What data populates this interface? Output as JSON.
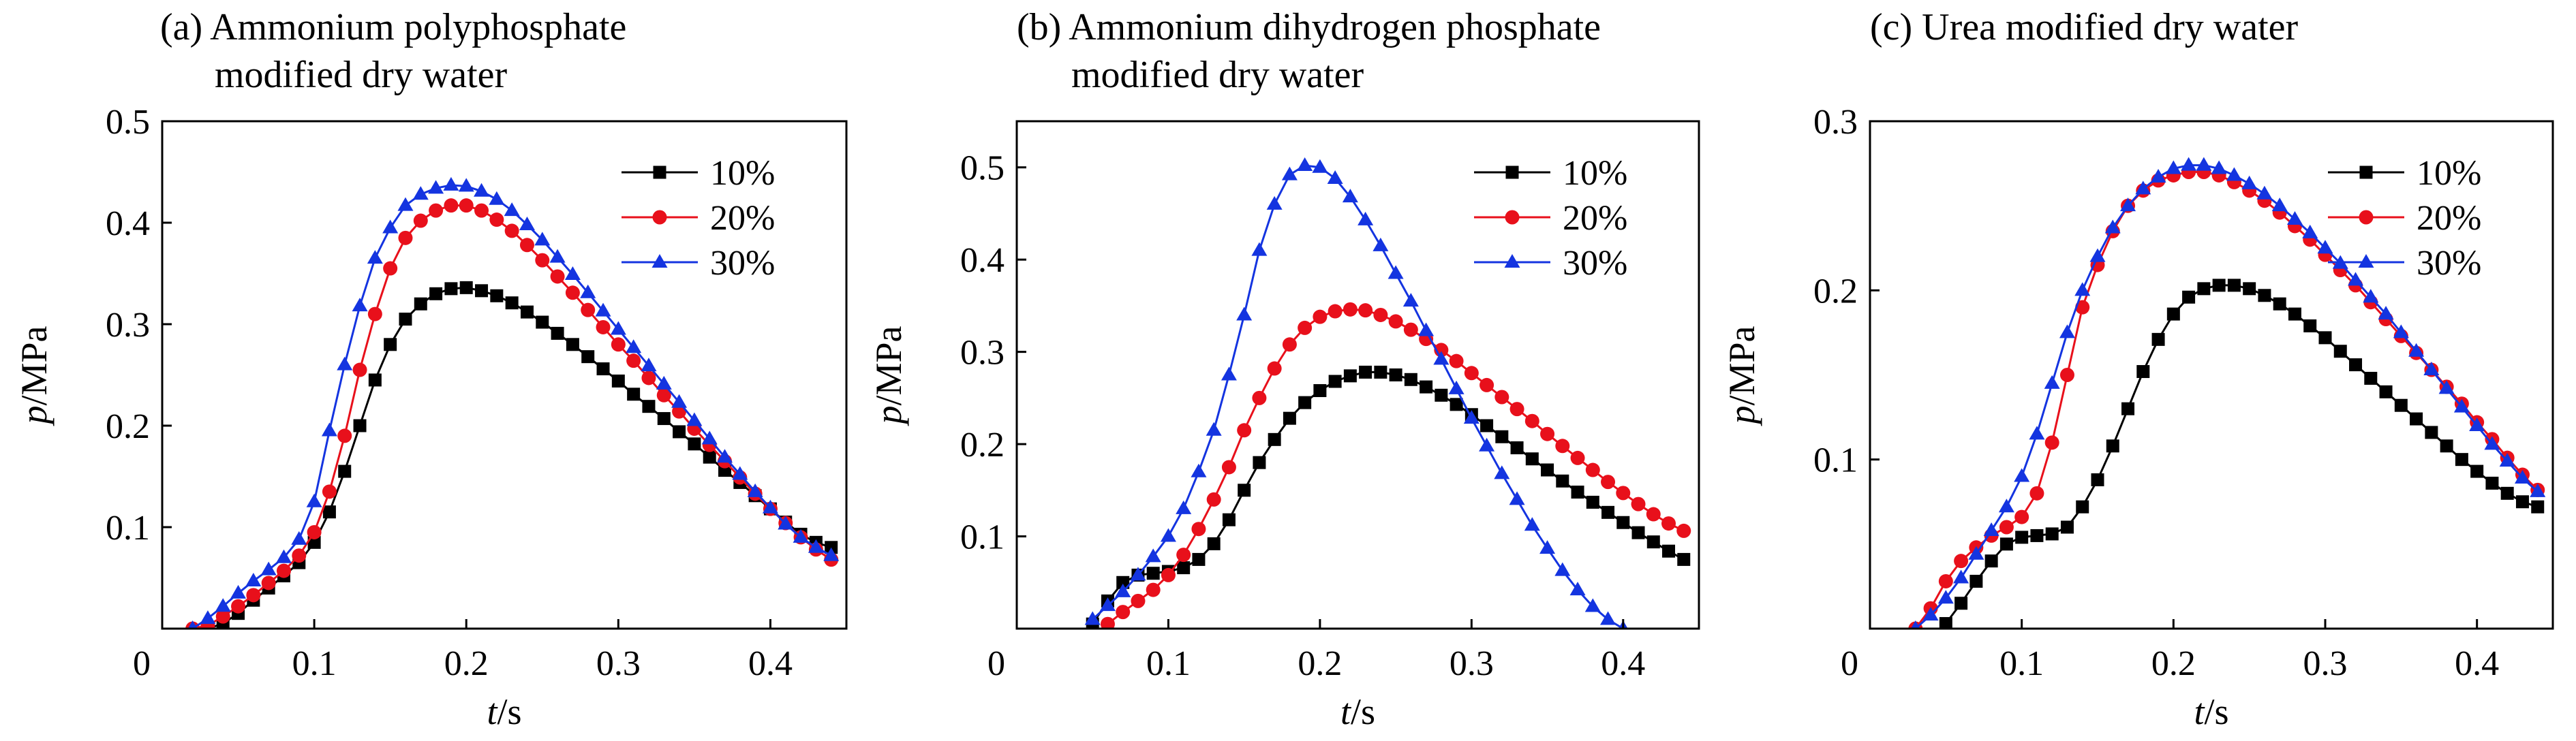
{
  "chart_data": [
    {
      "type": "line",
      "title_lines": [
        "(a) Ammonium polyphosphate",
        "modified dry water"
      ],
      "xlabel": {
        "var": "t",
        "unit": "/s"
      },
      "ylabel": {
        "var": "p",
        "unit": "/MPa"
      },
      "xlim": [
        0,
        0.45
      ],
      "ylim": [
        0,
        0.5
      ],
      "x_ticks": [
        0.1,
        0.2,
        0.3,
        0.4
      ],
      "x_tick_labels": [
        "0.1",
        "0.2",
        "0.3",
        "0.4"
      ],
      "y_ticks": [
        0.1,
        0.2,
        0.3,
        0.4,
        0.5
      ],
      "y_tick_labels": [
        "0.1",
        "0.2",
        "0.3",
        "0.4",
        "0.5"
      ],
      "origin_label": "0",
      "legend_position": "top-right",
      "series": [
        {
          "name": "10%",
          "color": "#000000",
          "marker": "square",
          "x": [
            0.03,
            0.04,
            0.05,
            0.06,
            0.07,
            0.08,
            0.09,
            0.1,
            0.11,
            0.12,
            0.13,
            0.14,
            0.15,
            0.16,
            0.17,
            0.18,
            0.19,
            0.2,
            0.21,
            0.22,
            0.23,
            0.24,
            0.25,
            0.26,
            0.27,
            0.28,
            0.29,
            0.3,
            0.31,
            0.32,
            0.33,
            0.34,
            0.35,
            0.36,
            0.37,
            0.38,
            0.39,
            0.4,
            0.41,
            0.42,
            0.43,
            0.44
          ],
          "y": [
            0.0,
            0.005,
            0.015,
            0.028,
            0.04,
            0.052,
            0.065,
            0.085,
            0.115,
            0.155,
            0.2,
            0.245,
            0.28,
            0.305,
            0.32,
            0.33,
            0.335,
            0.336,
            0.333,
            0.328,
            0.321,
            0.312,
            0.302,
            0.291,
            0.28,
            0.268,
            0.256,
            0.244,
            0.231,
            0.219,
            0.207,
            0.194,
            0.182,
            0.169,
            0.156,
            0.144,
            0.131,
            0.118,
            0.105,
            0.093,
            0.085,
            0.08
          ]
        },
        {
          "name": "20%",
          "color": "#e8101b",
          "marker": "circle",
          "x": [
            0.02,
            0.03,
            0.04,
            0.05,
            0.06,
            0.07,
            0.08,
            0.09,
            0.1,
            0.11,
            0.12,
            0.13,
            0.14,
            0.15,
            0.16,
            0.17,
            0.18,
            0.19,
            0.2,
            0.21,
            0.22,
            0.23,
            0.24,
            0.25,
            0.26,
            0.27,
            0.28,
            0.29,
            0.3,
            0.31,
            0.32,
            0.33,
            0.34,
            0.35,
            0.36,
            0.37,
            0.38,
            0.39,
            0.4,
            0.41,
            0.42,
            0.43,
            0.44
          ],
          "y": [
            0.0,
            0.003,
            0.012,
            0.022,
            0.033,
            0.045,
            0.057,
            0.072,
            0.095,
            0.135,
            0.19,
            0.255,
            0.31,
            0.355,
            0.385,
            0.402,
            0.412,
            0.417,
            0.417,
            0.412,
            0.403,
            0.392,
            0.378,
            0.363,
            0.347,
            0.331,
            0.314,
            0.297,
            0.28,
            0.264,
            0.247,
            0.23,
            0.214,
            0.197,
            0.181,
            0.165,
            0.149,
            0.133,
            0.118,
            0.104,
            0.09,
            0.078,
            0.068
          ]
        },
        {
          "name": "30%",
          "color": "#1434e0",
          "marker": "triangle",
          "x": [
            0.02,
            0.03,
            0.04,
            0.05,
            0.06,
            0.07,
            0.08,
            0.09,
            0.1,
            0.11,
            0.12,
            0.13,
            0.14,
            0.15,
            0.16,
            0.17,
            0.18,
            0.19,
            0.2,
            0.21,
            0.22,
            0.23,
            0.24,
            0.25,
            0.26,
            0.27,
            0.28,
            0.29,
            0.3,
            0.31,
            0.32,
            0.33,
            0.34,
            0.35,
            0.36,
            0.37,
            0.38,
            0.39,
            0.4,
            0.41,
            0.42,
            0.43,
            0.44
          ],
          "y": [
            0.0,
            0.01,
            0.022,
            0.035,
            0.047,
            0.058,
            0.07,
            0.088,
            0.125,
            0.195,
            0.26,
            0.318,
            0.365,
            0.395,
            0.417,
            0.428,
            0.434,
            0.437,
            0.436,
            0.431,
            0.423,
            0.412,
            0.398,
            0.383,
            0.366,
            0.349,
            0.331,
            0.313,
            0.295,
            0.277,
            0.259,
            0.241,
            0.223,
            0.205,
            0.187,
            0.169,
            0.152,
            0.135,
            0.119,
            0.103,
            0.09,
            0.08,
            0.072
          ]
        }
      ]
    },
    {
      "type": "line",
      "title_lines": [
        "(b) Ammonium dihydrogen phosphate",
        "modified dry water"
      ],
      "xlabel": {
        "var": "t",
        "unit": "/s"
      },
      "ylabel": {
        "var": "p",
        "unit": "/MPa"
      },
      "xlim": [
        0,
        0.45
      ],
      "ylim": [
        0,
        0.55
      ],
      "x_ticks": [
        0.1,
        0.2,
        0.3,
        0.4
      ],
      "x_tick_labels": [
        "0.1",
        "0.2",
        "0.3",
        "0.4"
      ],
      "y_ticks": [
        0.1,
        0.2,
        0.3,
        0.4,
        0.5
      ],
      "y_tick_labels": [
        "0.1",
        "0.2",
        "0.3",
        "0.4",
        "0.5"
      ],
      "origin_label": "0",
      "legend_position": "top-right",
      "series": [
        {
          "name": "10%",
          "color": "#000000",
          "marker": "square",
          "x": [
            0.05,
            0.06,
            0.07,
            0.08,
            0.09,
            0.1,
            0.11,
            0.12,
            0.13,
            0.14,
            0.15,
            0.16,
            0.17,
            0.18,
            0.19,
            0.2,
            0.21,
            0.22,
            0.23,
            0.24,
            0.25,
            0.26,
            0.27,
            0.28,
            0.29,
            0.3,
            0.31,
            0.32,
            0.33,
            0.34,
            0.35,
            0.36,
            0.37,
            0.38,
            0.39,
            0.4,
            0.41,
            0.42,
            0.43,
            0.44
          ],
          "y": [
            0.005,
            0.03,
            0.05,
            0.058,
            0.06,
            0.062,
            0.066,
            0.075,
            0.092,
            0.118,
            0.15,
            0.18,
            0.205,
            0.228,
            0.245,
            0.258,
            0.268,
            0.274,
            0.278,
            0.278,
            0.275,
            0.27,
            0.262,
            0.253,
            0.243,
            0.232,
            0.22,
            0.208,
            0.196,
            0.184,
            0.172,
            0.16,
            0.148,
            0.137,
            0.126,
            0.115,
            0.104,
            0.094,
            0.084,
            0.075
          ]
        },
        {
          "name": "20%",
          "color": "#e8101b",
          "marker": "circle",
          "x": [
            0.06,
            0.07,
            0.08,
            0.09,
            0.1,
            0.11,
            0.12,
            0.13,
            0.14,
            0.15,
            0.16,
            0.17,
            0.18,
            0.19,
            0.2,
            0.21,
            0.22,
            0.23,
            0.24,
            0.25,
            0.26,
            0.27,
            0.28,
            0.29,
            0.3,
            0.31,
            0.32,
            0.33,
            0.34,
            0.35,
            0.36,
            0.37,
            0.38,
            0.39,
            0.4,
            0.41,
            0.42,
            0.43,
            0.44
          ],
          "y": [
            0.005,
            0.018,
            0.03,
            0.042,
            0.058,
            0.08,
            0.108,
            0.14,
            0.175,
            0.215,
            0.25,
            0.282,
            0.308,
            0.326,
            0.338,
            0.344,
            0.346,
            0.345,
            0.34,
            0.333,
            0.324,
            0.314,
            0.302,
            0.29,
            0.277,
            0.264,
            0.251,
            0.238,
            0.225,
            0.211,
            0.198,
            0.185,
            0.172,
            0.159,
            0.147,
            0.135,
            0.124,
            0.114,
            0.106
          ]
        },
        {
          "name": "30%",
          "color": "#1434e0",
          "marker": "triangle",
          "x": [
            0.05,
            0.06,
            0.07,
            0.08,
            0.09,
            0.1,
            0.11,
            0.12,
            0.13,
            0.14,
            0.15,
            0.16,
            0.17,
            0.18,
            0.19,
            0.2,
            0.21,
            0.22,
            0.23,
            0.24,
            0.25,
            0.26,
            0.27,
            0.28,
            0.29,
            0.3,
            0.31,
            0.32,
            0.33,
            0.34,
            0.35,
            0.36,
            0.37,
            0.38,
            0.39,
            0.4
          ],
          "y": [
            0.01,
            0.025,
            0.04,
            0.058,
            0.078,
            0.1,
            0.13,
            0.17,
            0.215,
            0.275,
            0.34,
            0.41,
            0.46,
            0.492,
            0.502,
            0.5,
            0.488,
            0.468,
            0.443,
            0.415,
            0.385,
            0.355,
            0.323,
            0.292,
            0.26,
            0.228,
            0.198,
            0.168,
            0.14,
            0.112,
            0.087,
            0.063,
            0.042,
            0.024,
            0.01,
            0.0
          ]
        }
      ]
    },
    {
      "type": "line",
      "title_lines": [
        "(c) Urea modified dry water"
      ],
      "xlabel": {
        "var": "t",
        "unit": "/s"
      },
      "ylabel": {
        "var": "p",
        "unit": "/MPa"
      },
      "xlim": [
        0,
        0.45
      ],
      "ylim": [
        0,
        0.3
      ],
      "x_ticks": [
        0.1,
        0.2,
        0.3,
        0.4
      ],
      "x_tick_labels": [
        "0.1",
        "0.2",
        "0.3",
        "0.4"
      ],
      "y_ticks": [
        0.1,
        0.2,
        0.3
      ],
      "y_tick_labels": [
        "0.1",
        "0.2",
        "0.3"
      ],
      "origin_label": "0",
      "legend_position": "top-right",
      "series": [
        {
          "name": "10%",
          "color": "#000000",
          "marker": "square",
          "x": [
            0.05,
            0.06,
            0.07,
            0.08,
            0.09,
            0.1,
            0.11,
            0.12,
            0.13,
            0.14,
            0.15,
            0.16,
            0.17,
            0.18,
            0.19,
            0.2,
            0.21,
            0.22,
            0.23,
            0.24,
            0.25,
            0.26,
            0.27,
            0.28,
            0.29,
            0.3,
            0.31,
            0.32,
            0.33,
            0.34,
            0.35,
            0.36,
            0.37,
            0.38,
            0.39,
            0.4,
            0.41,
            0.42,
            0.43,
            0.44
          ],
          "y": [
            0.003,
            0.015,
            0.028,
            0.04,
            0.05,
            0.054,
            0.055,
            0.056,
            0.06,
            0.072,
            0.088,
            0.108,
            0.13,
            0.152,
            0.171,
            0.186,
            0.196,
            0.201,
            0.203,
            0.203,
            0.201,
            0.197,
            0.192,
            0.186,
            0.179,
            0.172,
            0.164,
            0.156,
            0.148,
            0.14,
            0.132,
            0.124,
            0.116,
            0.108,
            0.1,
            0.093,
            0.086,
            0.08,
            0.075,
            0.072
          ]
        },
        {
          "name": "20%",
          "color": "#e8101b",
          "marker": "circle",
          "x": [
            0.03,
            0.04,
            0.05,
            0.06,
            0.07,
            0.08,
            0.09,
            0.1,
            0.11,
            0.12,
            0.13,
            0.14,
            0.15,
            0.16,
            0.17,
            0.18,
            0.19,
            0.2,
            0.21,
            0.22,
            0.23,
            0.24,
            0.25,
            0.26,
            0.27,
            0.28,
            0.29,
            0.3,
            0.31,
            0.32,
            0.33,
            0.34,
            0.35,
            0.36,
            0.37,
            0.38,
            0.39,
            0.4,
            0.41,
            0.42,
            0.43,
            0.44
          ],
          "y": [
            0.0,
            0.012,
            0.028,
            0.04,
            0.048,
            0.055,
            0.06,
            0.066,
            0.08,
            0.11,
            0.15,
            0.19,
            0.215,
            0.235,
            0.25,
            0.259,
            0.265,
            0.268,
            0.27,
            0.27,
            0.268,
            0.264,
            0.259,
            0.253,
            0.246,
            0.238,
            0.23,
            0.221,
            0.212,
            0.203,
            0.193,
            0.183,
            0.173,
            0.163,
            0.153,
            0.143,
            0.133,
            0.122,
            0.112,
            0.101,
            0.091,
            0.082
          ]
        },
        {
          "name": "30%",
          "color": "#1434e0",
          "marker": "triangle",
          "x": [
            0.03,
            0.04,
            0.05,
            0.06,
            0.07,
            0.08,
            0.09,
            0.1,
            0.11,
            0.12,
            0.13,
            0.14,
            0.15,
            0.16,
            0.17,
            0.18,
            0.19,
            0.2,
            0.21,
            0.22,
            0.23,
            0.24,
            0.25,
            0.26,
            0.27,
            0.28,
            0.29,
            0.3,
            0.31,
            0.32,
            0.33,
            0.34,
            0.35,
            0.36,
            0.37,
            0.38,
            0.39,
            0.4,
            0.41,
            0.42,
            0.43,
            0.44
          ],
          "y": [
            0.0,
            0.008,
            0.018,
            0.03,
            0.044,
            0.058,
            0.072,
            0.09,
            0.115,
            0.145,
            0.175,
            0.2,
            0.22,
            0.237,
            0.25,
            0.26,
            0.267,
            0.272,
            0.274,
            0.274,
            0.272,
            0.268,
            0.263,
            0.257,
            0.25,
            0.242,
            0.234,
            0.225,
            0.216,
            0.206,
            0.196,
            0.186,
            0.175,
            0.164,
            0.153,
            0.142,
            0.131,
            0.12,
            0.109,
            0.099,
            0.089,
            0.081
          ]
        }
      ]
    }
  ]
}
